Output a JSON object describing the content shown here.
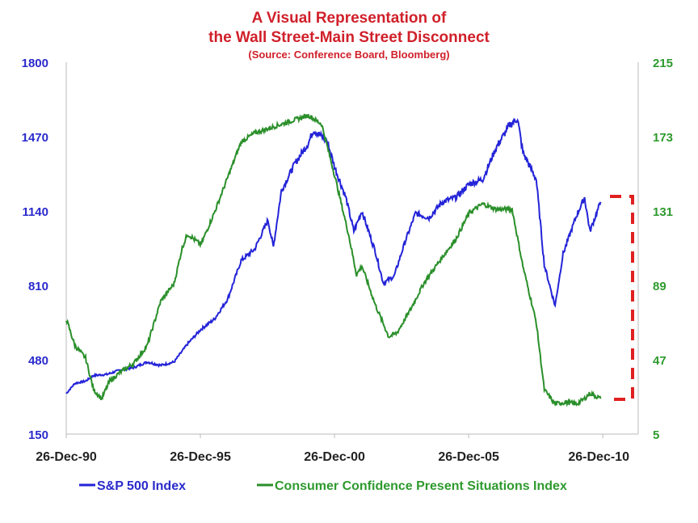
{
  "chart_data": {
    "type": "line",
    "title": "A Visual Representation of",
    "title_line2": "the Wall Street-Main Street Disconnect",
    "subtitle": "(Source: Conference Board, Bloomberg)",
    "x_ticks": [
      "26-Dec-90",
      "26-Dec-95",
      "26-Dec-00",
      "26-Dec-05",
      "26-Dec-10"
    ],
    "x_tick_years": [
      1990.98,
      1995.98,
      2000.98,
      2005.98,
      2010.98
    ],
    "xlim": [
      1990.98,
      2012.3
    ],
    "y_left": {
      "ticks": [
        "1800",
        "1470",
        "1140",
        "810",
        "480",
        "150"
      ],
      "ylim": [
        150,
        1800
      ],
      "color": "#2a2acc"
    },
    "y_right": {
      "ticks": [
        "215",
        "173",
        "131",
        "89",
        "47",
        "5"
      ],
      "ylim": [
        5,
        215
      ],
      "color": "#2e9a2e"
    },
    "series": [
      {
        "name": "S&P 500 Index",
        "axis": "left",
        "color": "#2323d8",
        "points": [
          [
            1990.98,
            330
          ],
          [
            1991.3,
            375
          ],
          [
            1991.7,
            385
          ],
          [
            1992,
            410
          ],
          [
            1992.5,
            415
          ],
          [
            1993,
            435
          ],
          [
            1993.5,
            445
          ],
          [
            1994,
            470
          ],
          [
            1994.5,
            455
          ],
          [
            1995,
            470
          ],
          [
            1995.5,
            550
          ],
          [
            1996,
            615
          ],
          [
            1996.5,
            660
          ],
          [
            1997,
            750
          ],
          [
            1997.5,
            920
          ],
          [
            1998,
            970
          ],
          [
            1998.5,
            1100
          ],
          [
            1998.7,
            980
          ],
          [
            1999,
            1230
          ],
          [
            1999.5,
            1350
          ],
          [
            2000,
            1440
          ],
          [
            2000.2,
            1500
          ],
          [
            2000.7,
            1450
          ],
          [
            2001,
            1330
          ],
          [
            2001.4,
            1200
          ],
          [
            2001.7,
            1050
          ],
          [
            2002,
            1140
          ],
          [
            2002.5,
            960
          ],
          [
            2002.8,
            820
          ],
          [
            2003.2,
            850
          ],
          [
            2003.6,
            1000
          ],
          [
            2004,
            1130
          ],
          [
            2004.5,
            1110
          ],
          [
            2005,
            1180
          ],
          [
            2005.5,
            1200
          ],
          [
            2006,
            1260
          ],
          [
            2006.5,
            1280
          ],
          [
            2007,
            1420
          ],
          [
            2007.5,
            1520
          ],
          [
            2007.8,
            1550
          ],
          [
            2008,
            1400
          ],
          [
            2008.5,
            1280
          ],
          [
            2008.8,
            900
          ],
          [
            2009.2,
            720
          ],
          [
            2009.5,
            950
          ],
          [
            2010,
            1120
          ],
          [
            2010.3,
            1200
          ],
          [
            2010.5,
            1050
          ],
          [
            2010.9,
            1180
          ]
        ]
      },
      {
        "name": "Consumer Confidence Present Situations Index",
        "axis": "right",
        "color": "#2a8f2a",
        "points": [
          [
            1990.98,
            70
          ],
          [
            1991.3,
            55
          ],
          [
            1991.7,
            48
          ],
          [
            1992,
            30
          ],
          [
            1992.3,
            25
          ],
          [
            1992.6,
            35
          ],
          [
            1993,
            40
          ],
          [
            1993.5,
            45
          ],
          [
            1994,
            55
          ],
          [
            1994.5,
            80
          ],
          [
            1995,
            90
          ],
          [
            1995.3,
            110
          ],
          [
            1995.5,
            118
          ],
          [
            1996,
            112
          ],
          [
            1996.5,
            130
          ],
          [
            1997,
            150
          ],
          [
            1997.5,
            170
          ],
          [
            1998,
            175
          ],
          [
            1999,
            180
          ],
          [
            2000,
            185
          ],
          [
            2000.5,
            180
          ],
          [
            2001,
            150
          ],
          [
            2001.5,
            118
          ],
          [
            2001.8,
            95
          ],
          [
            2002,
            100
          ],
          [
            2002.5,
            78
          ],
          [
            2003,
            60
          ],
          [
            2003.3,
            62
          ],
          [
            2003.8,
            75
          ],
          [
            2004.3,
            90
          ],
          [
            2005,
            105
          ],
          [
            2005.5,
            115
          ],
          [
            2006,
            130
          ],
          [
            2006.5,
            135
          ],
          [
            2007,
            132
          ],
          [
            2007.6,
            132
          ],
          [
            2008,
            100
          ],
          [
            2008.5,
            68
          ],
          [
            2008.8,
            30
          ],
          [
            2009.2,
            22
          ],
          [
            2009.6,
            23
          ],
          [
            2010,
            22
          ],
          [
            2010.3,
            25
          ],
          [
            2010.5,
            28
          ],
          [
            2010.9,
            25
          ]
        ]
      }
    ],
    "annotation": "red dashed bracket showing the gap between indexes",
    "annotation_color": "#e02020",
    "legend_position": "bottom"
  }
}
